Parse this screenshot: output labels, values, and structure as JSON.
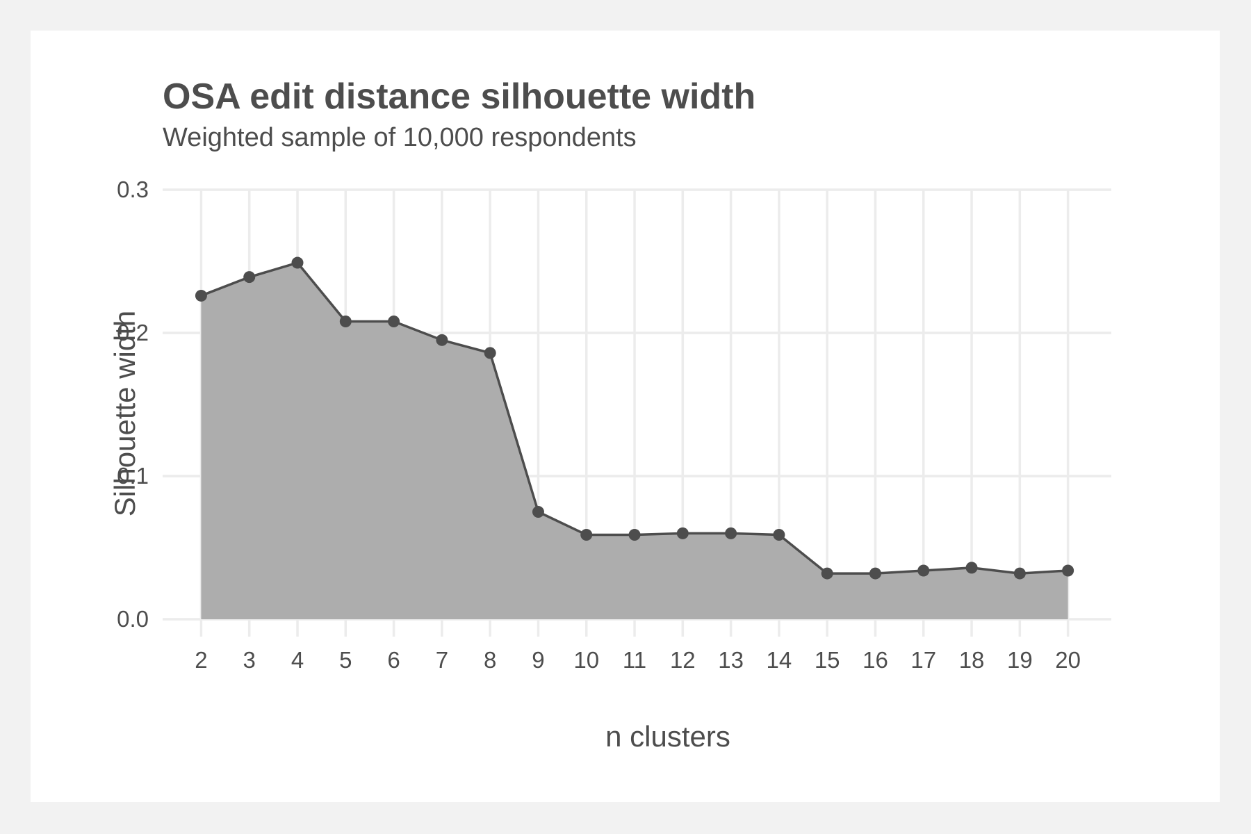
{
  "colors": {
    "page_background": "#f2f2f2",
    "panel_background": "#ffffff",
    "grid": "#ececec",
    "area_fill": "#adadad",
    "line": "#4d4d4d",
    "point": "#4d4d4d",
    "text": "#4d4d4d"
  },
  "chart_data": {
    "type": "area",
    "title": "OSA edit distance silhouette width",
    "subtitle": "Weighted sample of 10,000 respondents",
    "xlabel": "n clusters",
    "ylabel": "Silhouette width",
    "x": [
      2,
      3,
      4,
      5,
      6,
      7,
      8,
      9,
      10,
      11,
      12,
      13,
      14,
      15,
      16,
      17,
      18,
      19,
      20
    ],
    "x_tick_labels": [
      "2",
      "3",
      "4",
      "5",
      "6",
      "7",
      "8",
      "9",
      "10",
      "11",
      "12",
      "13",
      "14",
      "15",
      "16",
      "17",
      "18",
      "19",
      "20"
    ],
    "y": [
      0.226,
      0.239,
      0.249,
      0.208,
      0.208,
      0.195,
      0.186,
      0.075,
      0.059,
      0.059,
      0.06,
      0.06,
      0.059,
      0.032,
      0.032,
      0.034,
      0.036,
      0.032,
      0.034
    ],
    "y_ticks": [
      0.0,
      0.1,
      0.2,
      0.3
    ],
    "y_tick_labels": [
      "0.0",
      "0.1",
      "0.2",
      "0.3"
    ],
    "xlim": [
      1.2,
      20.9
    ],
    "ylim": [
      0,
      0.3
    ],
    "grid": true,
    "legend": "none",
    "markers": true
  }
}
